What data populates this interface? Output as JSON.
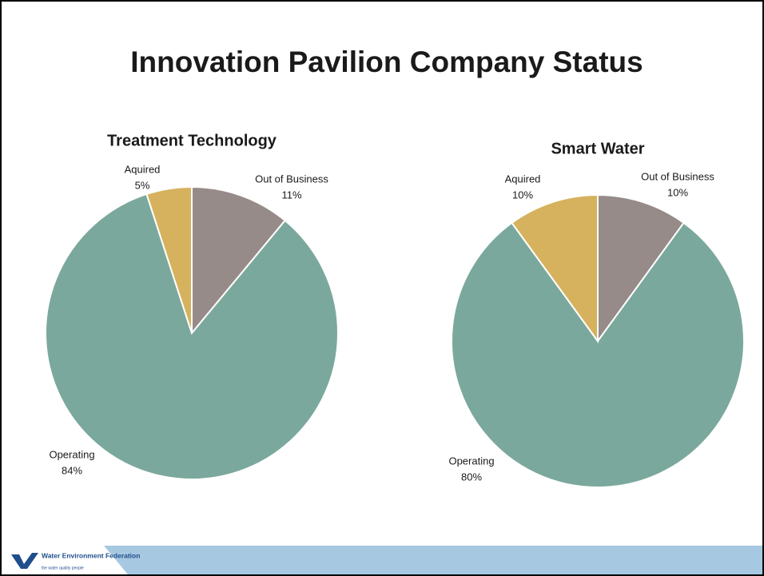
{
  "title": "Innovation Pavilion Company Status",
  "footer": {
    "logo": "Water Environment Federation",
    "tagline": "the water quality people"
  },
  "chart_data": [
    {
      "type": "pie",
      "title": "Treatment Technology",
      "categories": [
        "Out of Business",
        "Operating",
        "Aquired"
      ],
      "values": [
        11,
        84,
        5
      ],
      "value_labels": [
        "11%",
        "84%",
        "5%"
      ],
      "colors": [
        "#968b88",
        "#7ba89c",
        "#d6b25e"
      ]
    },
    {
      "type": "pie",
      "title": "Smart Water",
      "categories": [
        "Out of Business",
        "Operating",
        "Aquired"
      ],
      "values": [
        10,
        80,
        10
      ],
      "value_labels": [
        "10%",
        "80%",
        "10%"
      ],
      "colors": [
        "#968b88",
        "#7ba89c",
        "#d6b25e"
      ]
    }
  ]
}
